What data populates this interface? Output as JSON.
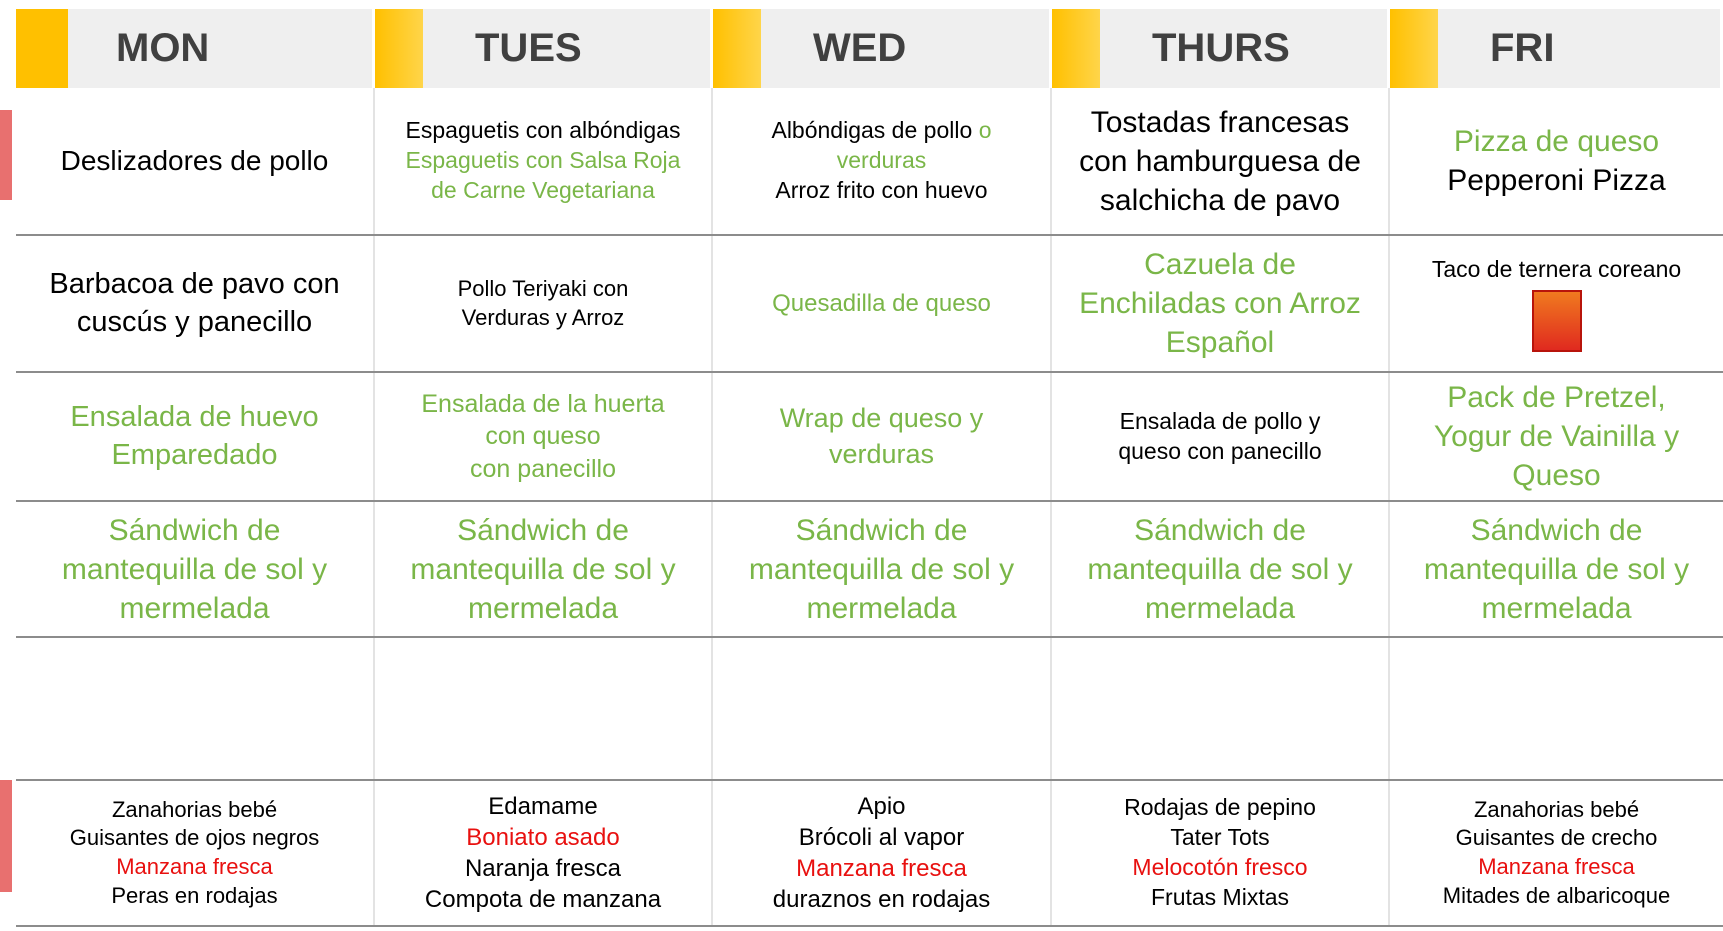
{
  "header": {
    "days": [
      "MON",
      "TUES",
      "WED",
      "THURS",
      "FRI"
    ]
  },
  "rows": [
    {
      "cells": [
        {
          "lines": [
            {
              "text": "Deslizadores de pollo",
              "color": "#000000"
            }
          ]
        },
        {
          "lines": [
            {
              "text": "Espaguetis con albóndigas",
              "color": "#000000"
            },
            {
              "text": "Espaguetis con Salsa Roja",
              "color": "#7ab648"
            },
            {
              "text": "de Carne Vegetariana",
              "color": "#7ab648"
            }
          ]
        },
        {
          "lines": [
            {
              "parts": [
                {
                  "text": "Albóndigas de pollo",
                  "color": "#000000"
                },
                {
                  "text": "o",
                  "color": "#7ab648"
                }
              ]
            },
            {
              "text": "verduras",
              "color": "#7ab648"
            },
            {
              "text": "Arroz frito con huevo",
              "color": "#000000"
            }
          ]
        },
        {
          "lines": [
            {
              "text": "Tostadas francesas",
              "color": "#000000"
            },
            {
              "text": "con hamburguesa de",
              "color": "#000000"
            },
            {
              "text": "salchicha de pavo",
              "color": "#000000"
            }
          ]
        },
        {
          "lines": [
            {
              "text": "Pizza de queso",
              "color": "#7ab648"
            },
            {
              "text": "Pepperoni Pizza",
              "color": "#000000"
            }
          ]
        }
      ]
    },
    {
      "cells": [
        {
          "lines": [
            {
              "text": "Barbacoa de pavo con",
              "color": "#000000"
            },
            {
              "text": "cuscús y panecillo",
              "color": "#000000"
            }
          ]
        },
        {
          "lines": [
            {
              "text": "Pollo Teriyaki con",
              "color": "#000000"
            },
            {
              "text": "Verduras y Arroz",
              "color": "#000000"
            }
          ]
        },
        {
          "lines": [
            {
              "text": "Quesadilla de queso",
              "color": "#7ab648"
            }
          ]
        },
        {
          "lines": [
            {
              "text": "Cazuela de",
              "color": "#7ab648"
            },
            {
              "text": "Enchiladas con Arroz",
              "color": "#7ab648"
            },
            {
              "text": "Español",
              "color": "#7ab648"
            }
          ]
        },
        {
          "lines": [
            {
              "text": "Taco de ternera coreano",
              "color": "#000000"
            }
          ]
        }
      ]
    },
    {
      "cells": [
        {
          "lines": [
            {
              "text": "Ensalada de huevo",
              "color": "#7ab648"
            },
            {
              "text": "Emparedado",
              "color": "#7ab648"
            }
          ]
        },
        {
          "lines": [
            {
              "text": "Ensalada de la huerta",
              "color": "#7ab648"
            },
            {
              "text": "con queso",
              "color": "#7ab648"
            },
            {
              "text": "con panecillo",
              "color": "#7ab648"
            }
          ]
        },
        {
          "lines": [
            {
              "text": "Wrap de queso y",
              "color": "#7ab648"
            },
            {
              "text": "verduras",
              "color": "#7ab648"
            }
          ]
        },
        {
          "lines": [
            {
              "text": "Ensalada de pollo y",
              "color": "#000000"
            },
            {
              "text": "queso con panecillo",
              "color": "#000000"
            }
          ]
        },
        {
          "lines": [
            {
              "text": "Pack de Pretzel,",
              "color": "#7ab648"
            },
            {
              "text": "Yogur de Vainilla y",
              "color": "#7ab648"
            },
            {
              "text": "Queso",
              "color": "#7ab648"
            }
          ]
        }
      ]
    },
    {
      "cells": [
        {
          "lines": [
            {
              "text": "Sándwich de",
              "color": "#7ab648"
            },
            {
              "text": "mantequilla de sol y",
              "color": "#7ab648"
            },
            {
              "text": "mermelada",
              "color": "#7ab648"
            }
          ]
        },
        {
          "lines": [
            {
              "text": "Sándwich de",
              "color": "#7ab648"
            },
            {
              "text": "mantequilla de sol y",
              "color": "#7ab648"
            },
            {
              "text": "mermelada",
              "color": "#7ab648"
            }
          ]
        },
        {
          "lines": [
            {
              "text": "Sándwich de",
              "color": "#7ab648"
            },
            {
              "text": "mantequilla de sol y",
              "color": "#7ab648"
            },
            {
              "text": "mermelada",
              "color": "#7ab648"
            }
          ]
        },
        {
          "lines": [
            {
              "text": "Sándwich de",
              "color": "#7ab648"
            },
            {
              "text": "mantequilla de sol y",
              "color": "#7ab648"
            },
            {
              "text": "mermelada",
              "color": "#7ab648"
            }
          ]
        },
        {
          "lines": [
            {
              "text": "Sándwich de",
              "color": "#7ab648"
            },
            {
              "text": "mantequilla de sol y",
              "color": "#7ab648"
            },
            {
              "text": "mermelada",
              "color": "#7ab648"
            }
          ]
        }
      ]
    },
    {
      "cells": [
        {
          "lines": []
        },
        {
          "lines": []
        },
        {
          "lines": []
        },
        {
          "lines": []
        },
        {
          "lines": []
        }
      ]
    },
    {
      "cells": [
        {
          "lines": [
            {
              "text": "Zanahorias bebé",
              "color": "#000000"
            },
            {
              "text": "Guisantes de ojos negros",
              "color": "#000000"
            },
            {
              "text": "Manzana fresca",
              "color": "#e8100f"
            },
            {
              "text": "Peras en rodajas",
              "color": "#000000"
            }
          ]
        },
        {
          "lines": [
            {
              "text": "Edamame",
              "color": "#000000"
            },
            {
              "text": "Boniato asado",
              "color": "#e8100f"
            },
            {
              "text": "Naranja fresca",
              "color": "#000000"
            },
            {
              "text": "Compota de manzana",
              "color": "#000000"
            }
          ]
        },
        {
          "lines": [
            {
              "text": "Apio",
              "color": "#000000"
            },
            {
              "text": "Brócoli al vapor",
              "color": "#000000"
            },
            {
              "text": "Manzana fresca",
              "color": "#e8100f"
            },
            {
              "text": "duraznos en rodajas",
              "color": "#000000"
            }
          ]
        },
        {
          "lines": [
            {
              "text": "Rodajas de pepino",
              "color": "#000000"
            },
            {
              "text": "Tater Tots",
              "color": "#000000"
            },
            {
              "text": "Melocotón fresco",
              "color": "#e8100f"
            },
            {
              "text": "Frutas Mixtas",
              "color": "#000000"
            }
          ]
        },
        {
          "lines": [
            {
              "text": "Zanahorias bebé",
              "color": "#000000"
            },
            {
              "text": "Guisantes de crecho",
              "color": "#000000"
            },
            {
              "text": "Manzana fresca",
              "color": "#e8100f"
            },
            {
              "text": "Mitades de albaricoque",
              "color": "#000000"
            }
          ]
        }
      ]
    }
  ]
}
